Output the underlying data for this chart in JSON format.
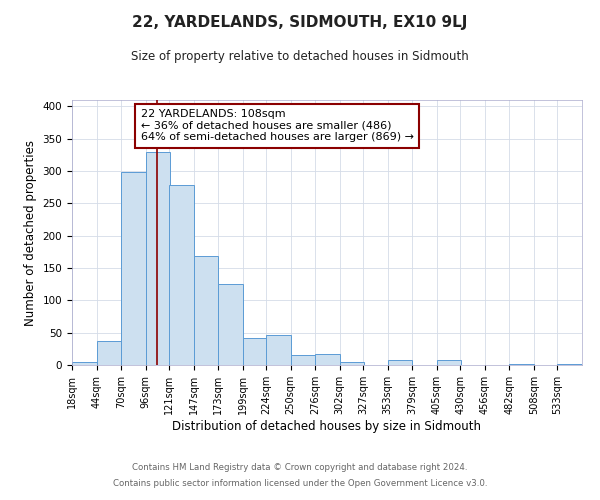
{
  "title": "22, YARDELANDS, SIDMOUTH, EX10 9LJ",
  "subtitle": "Size of property relative to detached houses in Sidmouth",
  "xlabel": "Distribution of detached houses by size in Sidmouth",
  "ylabel": "Number of detached properties",
  "bin_labels": [
    "18sqm",
    "44sqm",
    "70sqm",
    "96sqm",
    "121sqm",
    "147sqm",
    "173sqm",
    "199sqm",
    "224sqm",
    "250sqm",
    "276sqm",
    "302sqm",
    "327sqm",
    "353sqm",
    "379sqm",
    "405sqm",
    "430sqm",
    "456sqm",
    "482sqm",
    "508sqm",
    "533sqm"
  ],
  "bin_edges": [
    18,
    44,
    70,
    96,
    121,
    147,
    173,
    199,
    224,
    250,
    276,
    302,
    327,
    353,
    379,
    405,
    430,
    456,
    482,
    508,
    533
  ],
  "bar_heights": [
    4,
    37,
    298,
    330,
    279,
    168,
    125,
    42,
    46,
    16,
    17,
    5,
    0,
    7,
    0,
    7,
    0,
    0,
    2,
    0,
    2
  ],
  "bar_color": "#cde0f0",
  "bar_edge_color": "#5b9bd5",
  "property_value": 108,
  "property_line_color": "#8b0000",
  "annotation_line1": "22 YARDELANDS: 108sqm",
  "annotation_line2": "← 36% of detached houses are smaller (486)",
  "annotation_line3": "64% of semi-detached houses are larger (869) →",
  "annotation_box_edge_color": "#8b0000",
  "annotation_fontsize": 8,
  "ylim": [
    0,
    410
  ],
  "yticks": [
    0,
    50,
    100,
    150,
    200,
    250,
    300,
    350,
    400
  ],
  "footer1": "Contains HM Land Registry data © Crown copyright and database right 2024.",
  "footer2": "Contains public sector information licensed under the Open Government Licence v3.0.",
  "background_color": "#ffffff",
  "grid_color": "#d4dce8"
}
